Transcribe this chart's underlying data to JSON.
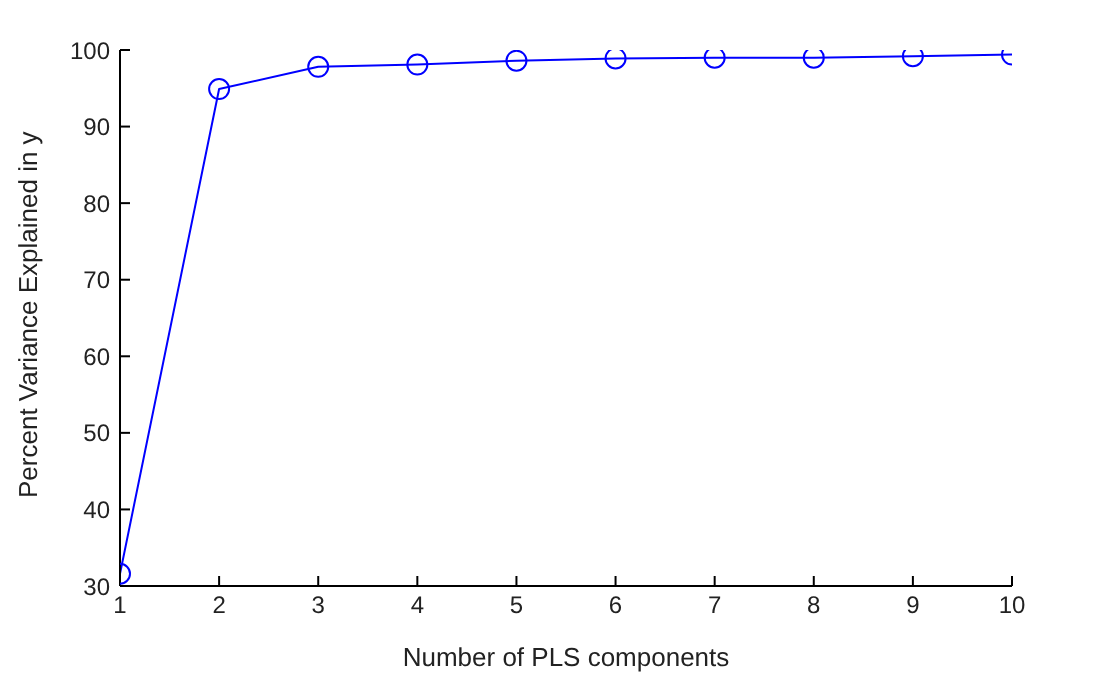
{
  "chart_data": {
    "type": "line",
    "xlabel": "Number of PLS components",
    "ylabel": "Percent Variance Explained in y",
    "x": [
      1,
      2,
      3,
      4,
      5,
      6,
      7,
      8,
      9,
      10
    ],
    "series": [
      {
        "color": "#0000ff",
        "values": [
          31.6,
          94.9,
          97.8,
          98.1,
          98.6,
          98.9,
          99.0,
          99.0,
          99.2,
          99.4
        ]
      }
    ],
    "xlim": [
      1,
      10
    ],
    "xticks": [
      1,
      2,
      3,
      4,
      5,
      6,
      7,
      8,
      9,
      10
    ],
    "ylim": [
      30,
      100
    ],
    "yticks": [
      30,
      40,
      50,
      60,
      70,
      80,
      90,
      100
    ],
    "marker": "circle",
    "line_style": "solid",
    "grid": false,
    "legend": false
  }
}
